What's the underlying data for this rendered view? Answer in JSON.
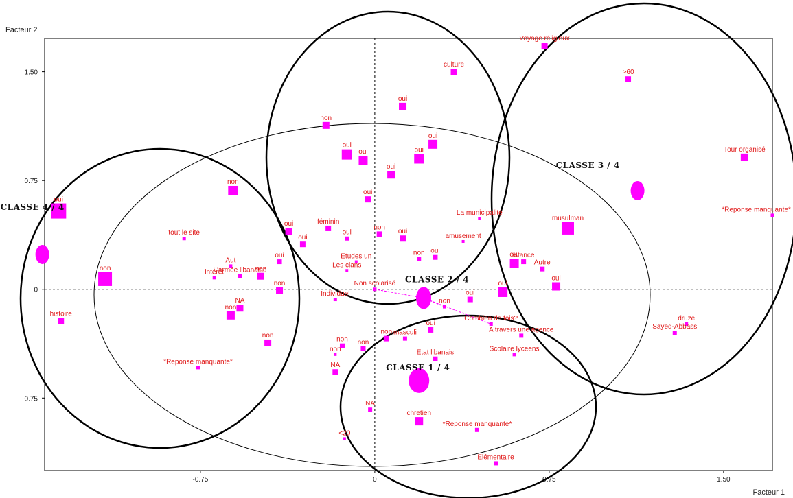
{
  "chart_data": {
    "type": "scatter",
    "title": "",
    "xlabel": "Facteur 1",
    "ylabel": "Facteur 2",
    "xlim": [
      -1.42,
      1.71
    ],
    "ylim": [
      -1.25,
      1.73
    ],
    "x_ticks": [
      {
        "value": -0.75,
        "label": "-0.75"
      },
      {
        "value": 0,
        "label": "0"
      },
      {
        "value": 0.75,
        "label": "0.75"
      },
      {
        "value": 1.5,
        "label": "1.50"
      }
    ],
    "y_ticks": [
      {
        "value": 1.5,
        "label": "1.50"
      },
      {
        "value": 0.75,
        "label": "0.75"
      },
      {
        "value": 0,
        "label": "0"
      },
      {
        "value": -0.75,
        "label": "-0.75"
      }
    ],
    "grid": false,
    "reference_lines": "dashed lines at x=0 and y=0",
    "colors": {
      "points": "#ff00ff",
      "labels": "#e01818",
      "circles": "#000000",
      "frame": "#000000"
    },
    "classes": [
      {
        "label": "CLASSE 1 / 4",
        "x": 0.19,
        "y": -0.63
      },
      {
        "label": "CLASSE 2 / 4",
        "x": 0.21,
        "y": -0.06
      },
      {
        "label": "CLASSE 3 / 4",
        "x": 1.13,
        "y": 0.68
      },
      {
        "label": "CLASSE 4 / 4",
        "x": -1.43,
        "y": 0.24
      }
    ],
    "points": [
      {
        "label": "Voyage réligieux",
        "x": 0.73,
        "y": 1.68
      },
      {
        "label": ">60",
        "x": 1.09,
        "y": 1.45
      },
      {
        "label": "culture",
        "x": 0.34,
        "y": 1.5
      },
      {
        "label": "oui",
        "x": 0.12,
        "y": 1.26
      },
      {
        "label": "non",
        "x": -0.21,
        "y": 1.13
      },
      {
        "label": "oui",
        "x": 0.25,
        "y": 1.0
      },
      {
        "label": "oui",
        "x": -0.12,
        "y": 0.93
      },
      {
        "label": "oui",
        "x": -0.05,
        "y": 0.89
      },
      {
        "label": "oui",
        "x": 0.19,
        "y": 0.9
      },
      {
        "label": "oui",
        "x": 0.07,
        "y": 0.79
      },
      {
        "label": "Tour organisé",
        "x": 1.59,
        "y": 0.91
      },
      {
        "label": "oui",
        "x": -1.36,
        "y": 0.54
      },
      {
        "label": "non",
        "x": -0.61,
        "y": 0.68
      },
      {
        "label": "oui",
        "x": -0.03,
        "y": 0.62
      },
      {
        "label": "tout le site",
        "x": -0.82,
        "y": 0.35
      },
      {
        "label": "*Reponse manquante*",
        "x": 1.71,
        "y": 0.51
      },
      {
        "label": "musulman",
        "x": 0.83,
        "y": 0.42
      },
      {
        "label": "féminin",
        "x": -0.2,
        "y": 0.42
      },
      {
        "label": "La municipalité",
        "x": 0.45,
        "y": 0.49
      },
      {
        "label": "oui",
        "x": -0.37,
        "y": 0.4
      },
      {
        "label": "oui",
        "x": -0.31,
        "y": 0.31
      },
      {
        "label": "oui",
        "x": -0.12,
        "y": 0.35
      },
      {
        "label": "oui",
        "x": 0.12,
        "y": 0.35
      },
      {
        "label": "non",
        "x": 0.02,
        "y": 0.38
      },
      {
        "label": "amusement",
        "x": 0.38,
        "y": 0.33
      },
      {
        "label": "non",
        "x": 0.19,
        "y": 0.21
      },
      {
        "label": "oui",
        "x": 0.26,
        "y": 0.22
      },
      {
        "label": "L'armée libanaise",
        "x": -0.58,
        "y": 0.09
      },
      {
        "label": "non",
        "x": -0.49,
        "y": 0.09
      },
      {
        "label": "oui",
        "x": -0.41,
        "y": 0.19
      },
      {
        "label": "intérêt",
        "x": -0.69,
        "y": 0.08
      },
      {
        "label": "Aut",
        "x": -0.62,
        "y": 0.16
      },
      {
        "label": "non",
        "x": -1.16,
        "y": 0.07
      },
      {
        "label": "Les clans",
        "x": -0.12,
        "y": 0.13
      },
      {
        "label": "Etudes un",
        "x": -0.08,
        "y": 0.19
      },
      {
        "label": "oui",
        "x": 0.6,
        "y": 0.18
      },
      {
        "label": "istance",
        "x": 0.64,
        "y": 0.19
      },
      {
        "label": "Autre",
        "x": 0.72,
        "y": 0.14
      },
      {
        "label": "oui",
        "x": 0.78,
        "y": 0.02
      },
      {
        "label": "oui",
        "x": 0.55,
        "y": -0.02
      },
      {
        "label": "non",
        "x": -0.41,
        "y": -0.01
      },
      {
        "label": "NA",
        "x": -0.58,
        "y": -0.13
      },
      {
        "label": "non",
        "x": -0.62,
        "y": -0.18
      },
      {
        "label": "histoire",
        "x": -1.35,
        "y": -0.22
      },
      {
        "label": "non",
        "x": -0.46,
        "y": -0.37
      },
      {
        "label": "*Reponse manquante*",
        "x": -0.76,
        "y": -0.54
      },
      {
        "label": "Individuel",
        "x": -0.17,
        "y": -0.07
      },
      {
        "label": "Non scolarisé",
        "x": 0.0,
        "y": 0.0
      },
      {
        "label": "Combien de fois?",
        "x": 0.5,
        "y": -0.24
      },
      {
        "label": "non",
        "x": 0.3,
        "y": -0.12
      },
      {
        "label": "oui",
        "x": 0.41,
        "y": -0.07
      },
      {
        "label": "masculi",
        "x": 0.13,
        "y": -0.34
      },
      {
        "label": "oui",
        "x": 0.24,
        "y": -0.28
      },
      {
        "label": "non",
        "x": 0.05,
        "y": -0.34
      },
      {
        "label": "non",
        "x": -0.14,
        "y": -0.39
      },
      {
        "label": "non",
        "x": -0.05,
        "y": -0.41
      },
      {
        "label": "Etat libanais",
        "x": 0.26,
        "y": -0.48
      },
      {
        "label": "A travers une agence",
        "x": 0.63,
        "y": -0.32
      },
      {
        "label": "Scolaire lyceens",
        "x": 0.6,
        "y": -0.45
      },
      {
        "label": "druze",
        "x": 1.34,
        "y": -0.24
      },
      {
        "label": "Sayed-Abbass",
        "x": 1.29,
        "y": -0.3
      },
      {
        "label": "NA",
        "x": -0.17,
        "y": -0.57
      },
      {
        "label": "non",
        "x": -0.17,
        "y": -0.45
      },
      {
        "label": "NA",
        "x": -0.02,
        "y": -0.83
      },
      {
        "label": "chretien",
        "x": 0.19,
        "y": -0.91
      },
      {
        "label": "*Reponse manquante*",
        "x": 0.44,
        "y": -0.97
      },
      {
        "label": "<20",
        "x": -0.13,
        "y": -1.03
      },
      {
        "label": "Elémentaire",
        "x": 0.52,
        "y": -1.2
      }
    ]
  }
}
